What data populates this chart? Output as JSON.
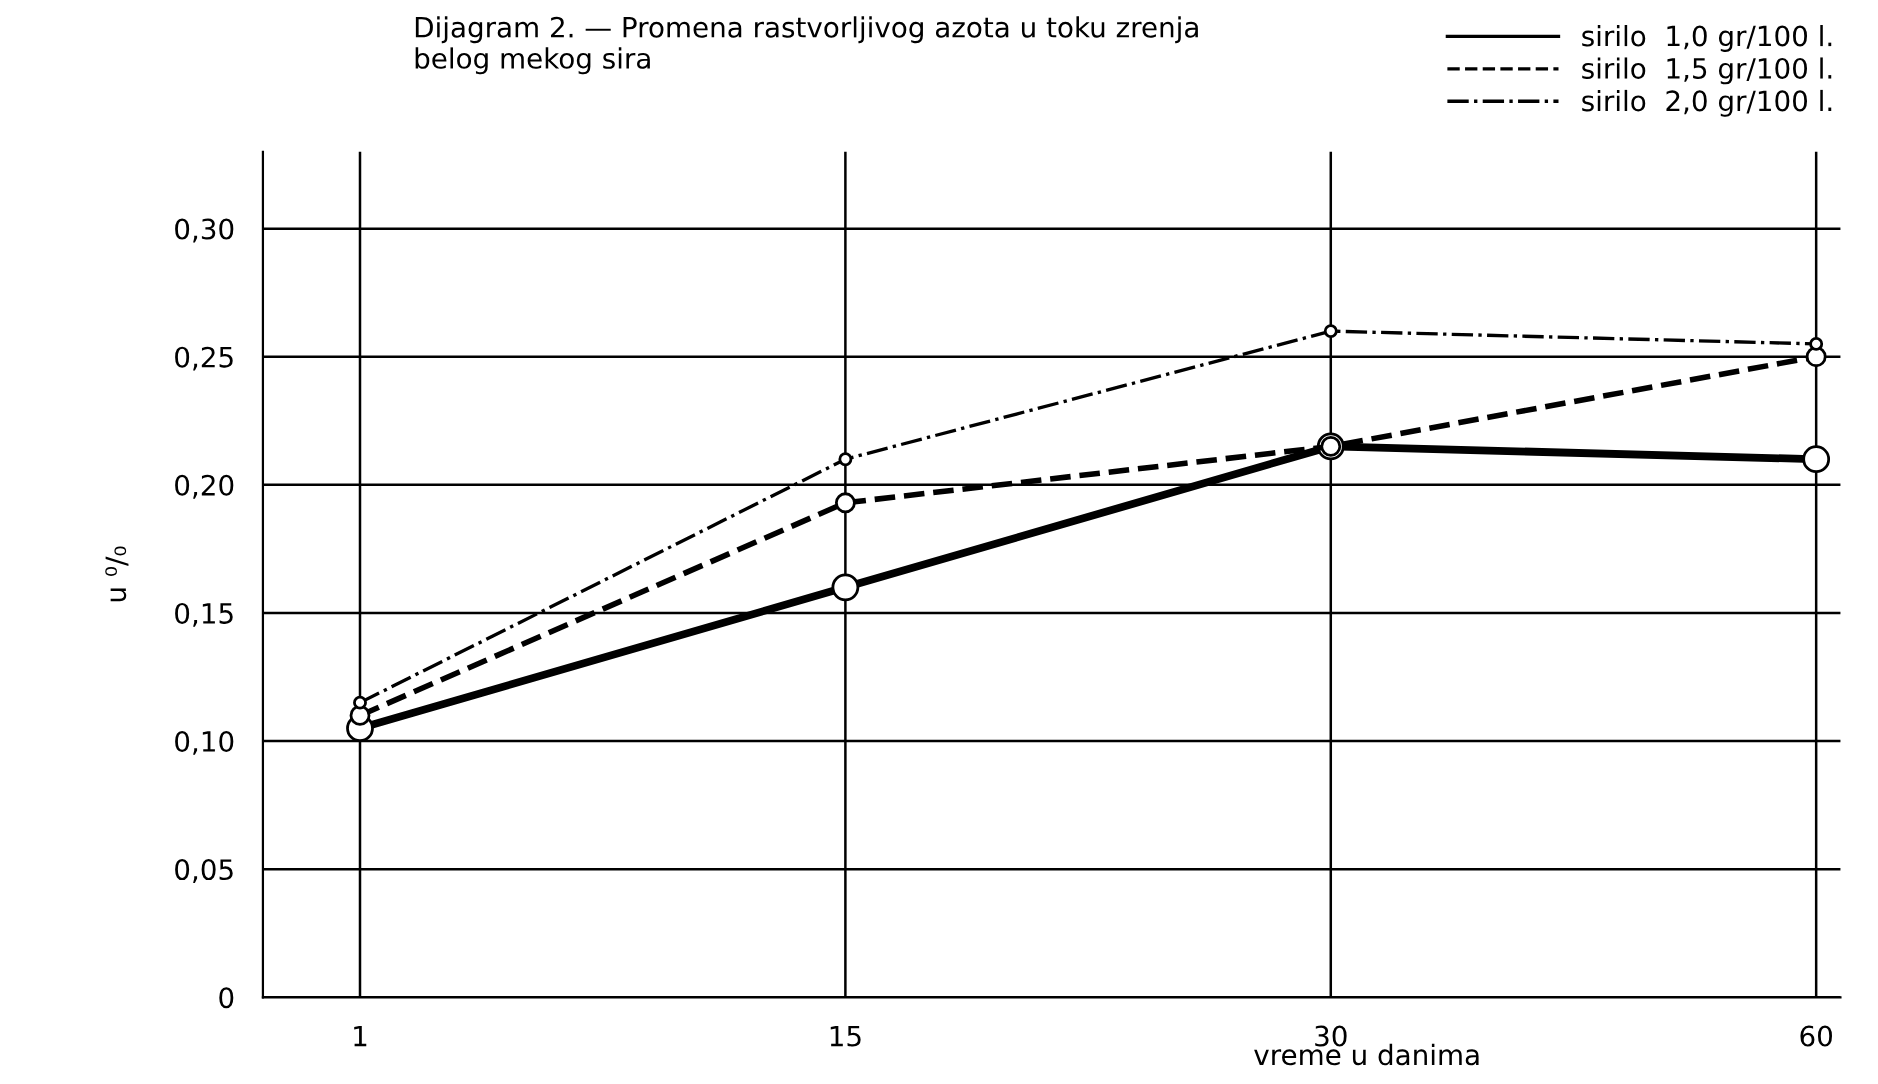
{
  "chart_data": {
    "type": "line",
    "title": "Dijagram 2. — Promena rastvorljivog azota u toku zrenja\nbelog mekog sira",
    "xlabel": "vreme u danima",
    "ylabel": "u ⁰/₀",
    "categories": [
      "1",
      "15",
      "30",
      "60"
    ],
    "series": [
      {
        "name": "sirilo  1,0 gr/100 l.",
        "color": "#000000",
        "line_style": "solid",
        "values": [
          0.105,
          0.16,
          0.215,
          0.21
        ]
      },
      {
        "name": "sirilo  1,5 gr/100 l.",
        "color": "#000000",
        "line_style": "dashed",
        "values": [
          0.11,
          0.193,
          0.215,
          0.25
        ]
      },
      {
        "name": "sirilo  2,0 gr/100 l.",
        "color": "#000000",
        "line_style": "dashdot",
        "values": [
          0.115,
          0.21,
          0.26,
          0.255
        ]
      }
    ],
    "ylim": [
      0,
      0.33
    ],
    "yticks": [
      {
        "value": 0,
        "label": "0"
      },
      {
        "value": 0.05,
        "label": "0,05"
      },
      {
        "value": 0.1,
        "label": "0,10"
      },
      {
        "value": 0.15,
        "label": "0,15"
      },
      {
        "value": 0.2,
        "label": "0,20"
      },
      {
        "value": 0.25,
        "label": "0,25"
      },
      {
        "value": 0.3,
        "label": "0,30"
      }
    ],
    "grid": true,
    "legend": "top right",
    "marker": "circle"
  }
}
